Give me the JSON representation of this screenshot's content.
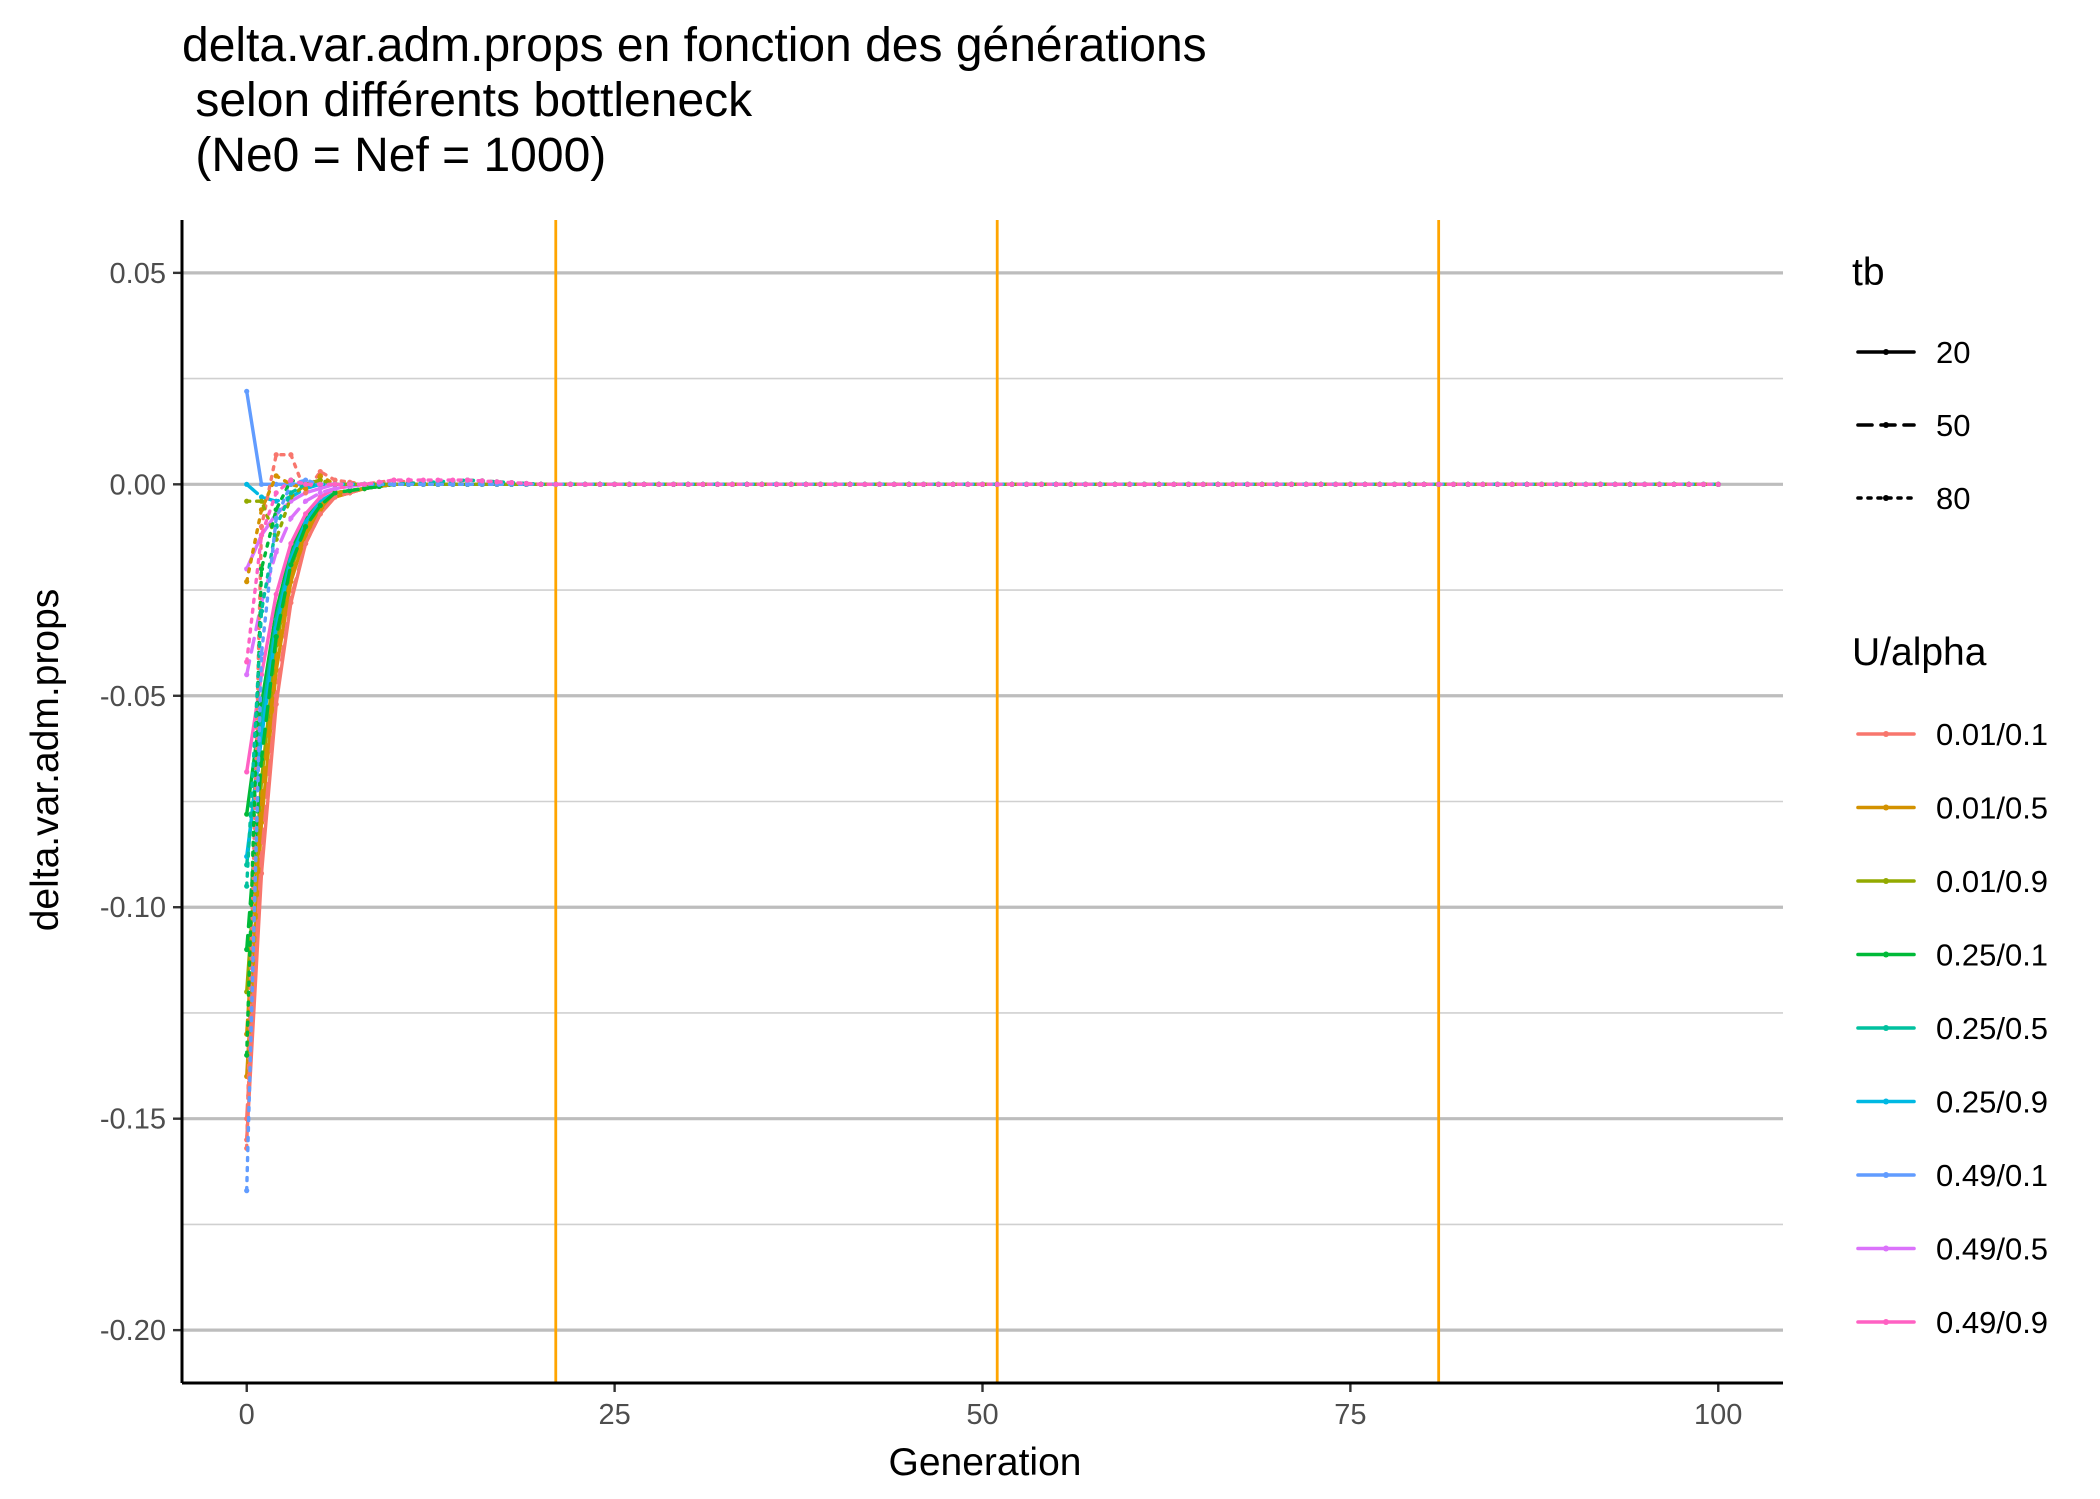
{
  "chart_data": {
    "type": "line",
    "title": "delta.var.adm.props en fonction des générations\n selon différents bottleneck\n (Ne0 = Nef = 1000)",
    "xlabel": "Generation",
    "ylabel": "delta.var.adm.props",
    "xlim": [
      -4.4,
      104.4
    ],
    "ylim": [
      -0.2125,
      0.0625
    ],
    "x_ticks": [
      0,
      25,
      50,
      75,
      100
    ],
    "x_tick_labels": [
      "0",
      "25",
      "50",
      "75",
      "100"
    ],
    "y_ticks": [
      0.05,
      0.0,
      -0.05,
      -0.1,
      -0.15,
      -0.2
    ],
    "y_tick_labels": [
      "0.05",
      "0.00",
      "-0.05",
      "-0.10",
      "-0.15",
      "-0.20"
    ],
    "y_minor_ticks": [
      0.025,
      -0.025,
      -0.075,
      -0.125,
      -0.175
    ],
    "grid": true,
    "vlines": [
      {
        "x": 21,
        "color": "#FFA500"
      },
      {
        "x": 51,
        "color": "#FFA500"
      },
      {
        "x": 81,
        "color": "#FFA500"
      }
    ],
    "legend_placement": "right",
    "legend_tb": {
      "title": "tb",
      "entries": [
        {
          "label": "20",
          "linetype": "solid"
        },
        {
          "label": "50",
          "linetype": "dashed"
        },
        {
          "label": "80",
          "linetype": "dotted"
        }
      ]
    },
    "legend_color": {
      "title": "U/alpha",
      "entries": [
        {
          "label": "0.01/0.1",
          "color": "#F8766D"
        },
        {
          "label": "0.01/0.5",
          "color": "#D39200"
        },
        {
          "label": "0.01/0.9",
          "color": "#93AA00"
        },
        {
          "label": "0.25/0.1",
          "color": "#00BA38"
        },
        {
          "label": "0.25/0.5",
          "color": "#00C19F"
        },
        {
          "label": "0.25/0.9",
          "color": "#00B9E3"
        },
        {
          "label": "0.49/0.1",
          "color": "#619CFF"
        },
        {
          "label": "0.49/0.5",
          "color": "#DB72FB"
        },
        {
          "label": "0.49/0.9",
          "color": "#FF61C3"
        }
      ]
    },
    "series": [
      {
        "u_alpha": "0.01/0.1",
        "tb": "20",
        "color": "#F8766D",
        "linetype": "solid",
        "x": [
          0,
          1,
          2,
          3,
          4,
          5,
          6,
          8,
          10,
          15,
          20,
          100
        ],
        "y": [
          -0.155,
          -0.092,
          -0.052,
          -0.028,
          -0.014,
          -0.007,
          -0.003,
          -0.001,
          0.0,
          0.0,
          0.0,
          0.0
        ]
      },
      {
        "u_alpha": "0.01/0.5",
        "tb": "20",
        "color": "#D39200",
        "linetype": "solid",
        "x": [
          0,
          1,
          2,
          3,
          4,
          5,
          6,
          8,
          10,
          15,
          20,
          100
        ],
        "y": [
          -0.14,
          -0.08,
          -0.044,
          -0.023,
          -0.012,
          -0.006,
          -0.003,
          -0.001,
          0.0,
          0.0,
          0.0,
          0.0
        ]
      },
      {
        "u_alpha": "0.01/0.9",
        "tb": "20",
        "color": "#93AA00",
        "linetype": "solid",
        "x": [
          0,
          1,
          2,
          3,
          4,
          5,
          6,
          8,
          10,
          15,
          20,
          100
        ],
        "y": [
          -0.12,
          -0.07,
          -0.038,
          -0.02,
          -0.01,
          -0.005,
          -0.002,
          -0.001,
          0.0,
          0.0,
          0.0,
          0.0
        ]
      },
      {
        "u_alpha": "0.25/0.1",
        "tb": "20",
        "color": "#00BA38",
        "linetype": "solid",
        "x": [
          0,
          1,
          2,
          3,
          4,
          5,
          6,
          8,
          10,
          15,
          20,
          100
        ],
        "y": [
          -0.078,
          -0.052,
          -0.03,
          -0.016,
          -0.008,
          -0.004,
          -0.002,
          -0.001,
          0.0,
          0.0,
          0.0,
          0.0
        ]
      },
      {
        "u_alpha": "0.25/0.5",
        "tb": "20",
        "color": "#00C19F",
        "linetype": "solid",
        "x": [
          0,
          1,
          2,
          3,
          4,
          5,
          6,
          8,
          10,
          15,
          20,
          100
        ],
        "y": [
          -0.09,
          -0.056,
          -0.032,
          -0.017,
          -0.009,
          -0.004,
          -0.002,
          -0.001,
          0.0,
          0.0,
          0.0,
          0.0
        ]
      },
      {
        "u_alpha": "0.25/0.9",
        "tb": "20",
        "color": "#00B9E3",
        "linetype": "solid",
        "x": [
          0,
          1,
          2,
          3,
          4,
          5,
          6,
          8,
          10,
          15,
          20,
          100
        ],
        "y": [
          -0.088,
          -0.06,
          -0.034,
          -0.018,
          -0.009,
          -0.004,
          -0.002,
          -0.001,
          0.0,
          0.0,
          0.0,
          0.0
        ]
      },
      {
        "u_alpha": "0.49/0.1",
        "tb": "20",
        "color": "#619CFF",
        "linetype": "solid",
        "x": [
          0,
          1,
          2,
          3,
          4,
          6,
          8,
          10,
          15,
          20,
          100
        ],
        "y": [
          0.022,
          0.0,
          0.0,
          0.0,
          0.0,
          0.0,
          0.0,
          0.0,
          0.0,
          0.0,
          0.0
        ]
      },
      {
        "u_alpha": "0.49/0.5",
        "tb": "20",
        "color": "#DB72FB",
        "linetype": "solid",
        "x": [
          0,
          1,
          2,
          3,
          4,
          5,
          6,
          8,
          10,
          15,
          20,
          100
        ],
        "y": [
          -0.02,
          -0.012,
          -0.007,
          -0.004,
          -0.002,
          -0.001,
          0.0,
          0.0,
          0.0,
          0.0,
          0.0,
          0.0
        ]
      },
      {
        "u_alpha": "0.49/0.9",
        "tb": "20",
        "color": "#FF61C3",
        "linetype": "solid",
        "x": [
          0,
          1,
          2,
          3,
          4,
          5,
          6,
          8,
          10,
          15,
          20,
          100
        ],
        "y": [
          -0.068,
          -0.045,
          -0.026,
          -0.014,
          -0.007,
          -0.003,
          -0.001,
          0.0,
          0.0,
          0.0,
          0.0,
          0.0
        ]
      },
      {
        "u_alpha": "0.01/0.1",
        "tb": "50",
        "color": "#F8766D",
        "linetype": "dashed",
        "x": [
          0,
          1,
          2,
          3,
          4,
          5,
          6,
          8,
          10,
          15,
          20,
          100
        ],
        "y": [
          -0.15,
          -0.088,
          -0.05,
          -0.027,
          -0.014,
          -0.007,
          -0.003,
          -0.001,
          0.0,
          0.0,
          0.0,
          0.0
        ]
      },
      {
        "u_alpha": "0.01/0.5",
        "tb": "50",
        "color": "#D39200",
        "linetype": "dashed",
        "x": [
          0,
          1,
          2,
          3,
          4,
          5,
          6,
          8,
          10,
          15,
          20,
          100
        ],
        "y": [
          -0.13,
          -0.075,
          -0.042,
          -0.022,
          -0.011,
          -0.005,
          -0.002,
          -0.001,
          0.0,
          0.0,
          0.0,
          0.0
        ]
      },
      {
        "u_alpha": "0.25/0.1",
        "tb": "50",
        "color": "#00BA38",
        "linetype": "dashed",
        "x": [
          0,
          1,
          2,
          3,
          4,
          5,
          6,
          8,
          10,
          15,
          20,
          100
        ],
        "y": [
          -0.11,
          -0.065,
          -0.036,
          -0.019,
          -0.01,
          -0.005,
          -0.002,
          -0.001,
          0.0,
          0.0,
          0.0,
          0.0
        ]
      },
      {
        "u_alpha": "0.25/0.9",
        "tb": "50",
        "color": "#00B9E3",
        "linetype": "dashed",
        "x": [
          0,
          1,
          2,
          3,
          4,
          5,
          6,
          8,
          10,
          15,
          20,
          100
        ],
        "y": [
          -0.0,
          -0.003,
          -0.004,
          -0.003,
          -0.001,
          0.0,
          0.0,
          0.0,
          0.0,
          0.0,
          0.0,
          0.0
        ]
      },
      {
        "u_alpha": "0.49/0.5",
        "tb": "50",
        "color": "#DB72FB",
        "linetype": "dashed",
        "x": [
          0,
          1,
          2,
          3,
          4,
          5,
          6,
          8,
          10,
          15,
          20,
          100
        ],
        "y": [
          -0.045,
          -0.028,
          -0.016,
          -0.008,
          -0.004,
          -0.002,
          -0.001,
          0.0,
          0.0,
          0.0,
          0.0,
          0.0
        ]
      },
      {
        "u_alpha": "0.01/0.1",
        "tb": "80",
        "color": "#F8766D",
        "linetype": "dotted",
        "x": [
          0,
          1,
          2,
          3,
          4,
          5,
          6,
          8,
          10,
          12,
          15,
          20,
          100
        ],
        "y": [
          -0.157,
          -0.01,
          0.007,
          0.007,
          -0.002,
          0.003,
          0.001,
          0.0,
          0.001,
          0.0,
          0.001,
          0.0,
          0.0
        ]
      },
      {
        "u_alpha": "0.01/0.5",
        "tb": "80",
        "color": "#D39200",
        "linetype": "dotted",
        "x": [
          0,
          1,
          2,
          3,
          4,
          5,
          6,
          8,
          10,
          15,
          20,
          100
        ],
        "y": [
          -0.023,
          -0.006,
          0.002,
          0.0,
          -0.001,
          0.002,
          0.0,
          0.0,
          0.0,
          0.0,
          0.0,
          0.0
        ]
      },
      {
        "u_alpha": "0.01/0.9",
        "tb": "80",
        "color": "#93AA00",
        "linetype": "dotted",
        "x": [
          0,
          1,
          2,
          3,
          4,
          5,
          6,
          8,
          10,
          15,
          20,
          100
        ],
        "y": [
          -0.004,
          -0.004,
          -0.013,
          -0.003,
          0.0,
          0.001,
          0.0,
          0.0,
          0.0,
          0.0,
          0.0,
          0.0
        ]
      },
      {
        "u_alpha": "0.25/0.1",
        "tb": "80",
        "color": "#00BA38",
        "linetype": "dotted",
        "x": [
          0,
          1,
          2,
          3,
          4,
          5,
          6,
          8,
          10,
          15,
          20,
          100
        ],
        "y": [
          -0.135,
          -0.02,
          -0.006,
          0.001,
          0.0,
          0.0,
          0.0,
          0.0,
          0.0,
          0.0,
          0.0,
          0.0
        ]
      },
      {
        "u_alpha": "0.25/0.5",
        "tb": "80",
        "color": "#00C19F",
        "linetype": "dotted",
        "x": [
          0,
          1,
          2,
          3,
          4,
          5,
          6,
          8,
          10,
          15,
          20,
          100
        ],
        "y": [
          -0.095,
          -0.03,
          -0.01,
          -0.002,
          0.0,
          0.0,
          0.0,
          0.0,
          0.0,
          0.001,
          0.0,
          0.0
        ]
      },
      {
        "u_alpha": "0.49/0.1",
        "tb": "80",
        "color": "#619CFF",
        "linetype": "dotted",
        "x": [
          0,
          1,
          2,
          3,
          4,
          5,
          6,
          8,
          10,
          15,
          20,
          100
        ],
        "y": [
          -0.167,
          -0.04,
          -0.008,
          0.0,
          0.001,
          0.0,
          0.0,
          0.0,
          0.0,
          0.0,
          0.0,
          0.0
        ]
      },
      {
        "u_alpha": "0.49/0.9",
        "tb": "80",
        "color": "#FF61C3",
        "linetype": "dotted",
        "x": [
          0,
          1,
          2,
          3,
          4,
          5,
          6,
          8,
          10,
          15,
          20,
          100
        ],
        "y": [
          -0.042,
          -0.012,
          -0.002,
          0.001,
          0.0,
          0.0,
          0.0,
          0.0,
          0.001,
          0.001,
          0.0,
          0.0
        ]
      }
    ]
  }
}
